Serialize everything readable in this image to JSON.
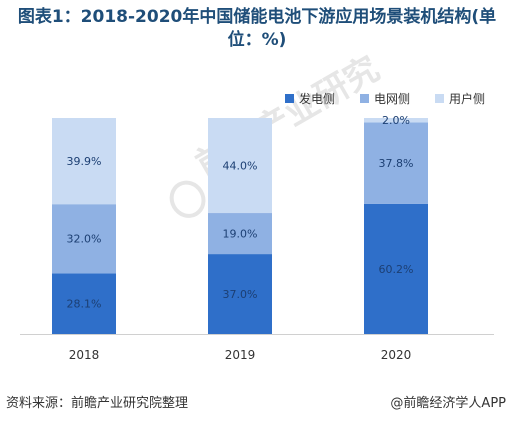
{
  "title": "图表1：2018-2020年中国储能电池下游应用场景装机结构(单位：%)",
  "watermark": "前瞻产业研究院",
  "source": "资料来源：前瞻产业研究院整理",
  "brand": "@前瞻经济学人APP",
  "chart_data": {
    "type": "bar",
    "stacked": true,
    "percent": true,
    "categories": [
      "2018",
      "2019",
      "2020"
    ],
    "series": [
      {
        "name": "发电侧",
        "color": "#2f6fc9",
        "values": [
          28.1,
          37.0,
          60.2
        ],
        "labels": [
          "28.1%",
          "37.0%",
          "60.2%"
        ]
      },
      {
        "name": "电网侧",
        "color": "#8fb1e3",
        "values": [
          32.0,
          19.0,
          37.8
        ],
        "labels": [
          "32.0%",
          "19.0%",
          "37.8%"
        ]
      },
      {
        "name": "用户侧",
        "color": "#c9dbf3",
        "values": [
          39.9,
          44.0,
          2.0
        ],
        "labels": [
          "39.9%",
          "44.0%",
          "2.0%"
        ]
      }
    ],
    "ylim": [
      0,
      100
    ],
    "legend_position": "top-right",
    "grid": false
  }
}
